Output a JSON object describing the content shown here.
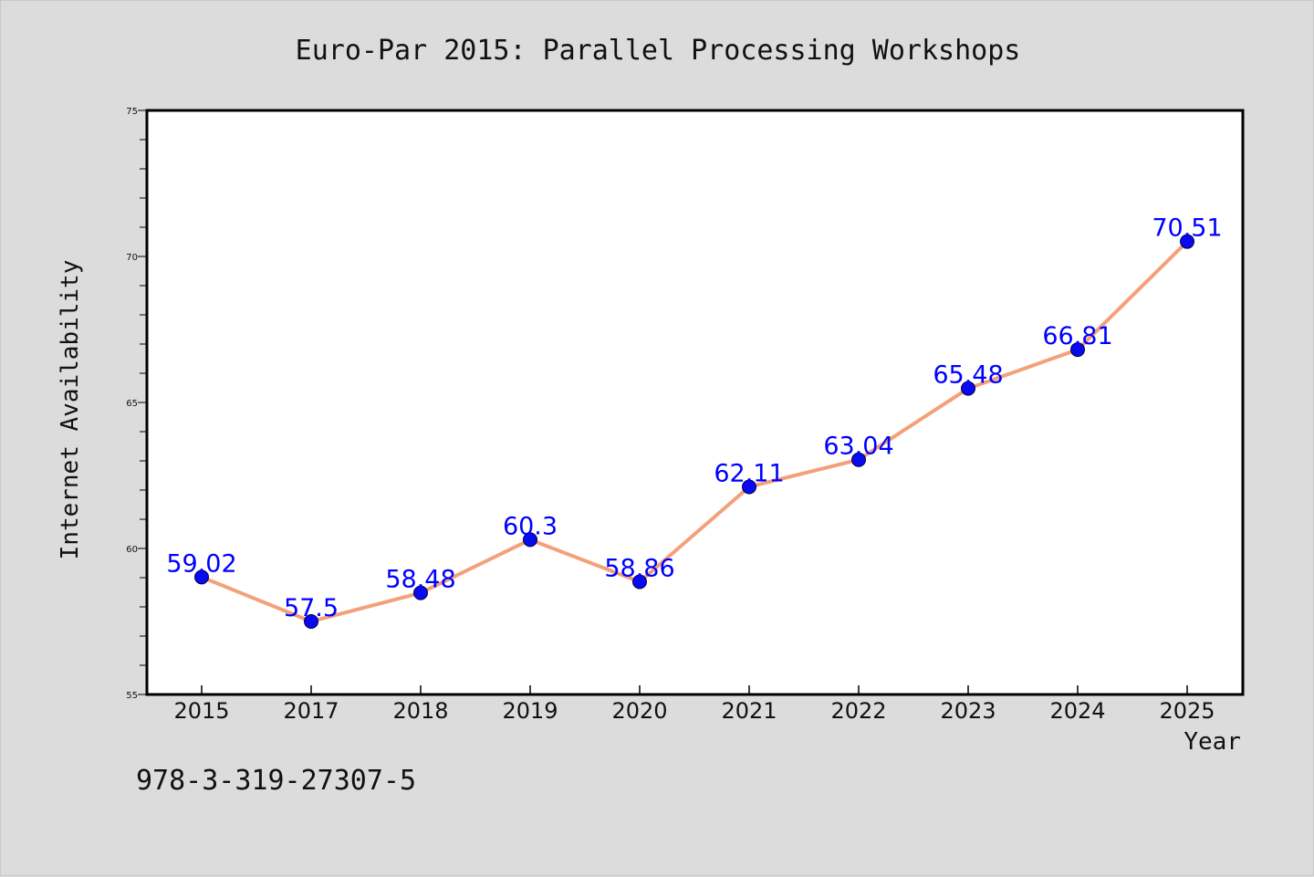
{
  "chart_data": {
    "type": "line",
    "title": "Euro-Par 2015: Parallel Processing Workshops",
    "xlabel": "Year",
    "ylabel": "Internet Availability",
    "categories": [
      "2015",
      "2017",
      "2018",
      "2019",
      "2020",
      "2021",
      "2022",
      "2023",
      "2024",
      "2025"
    ],
    "series": [
      {
        "values": [
          59.02,
          57.5,
          58.48,
          60.3,
          58.86,
          62.11,
          63.04,
          65.48,
          66.81,
          70.51
        ],
        "labels": [
          "59.02",
          "57.5",
          "58.48",
          "60.3",
          "58.86",
          "62.11",
          "63.04",
          "65.48",
          "66.81",
          "70.51"
        ]
      }
    ],
    "ylim": [
      55,
      75
    ],
    "yticks": [
      "55",
      "60",
      "65",
      "70",
      "75"
    ],
    "grid": false,
    "colors": {
      "line": "#f4a07a",
      "marker": "#0a0af0",
      "marker_edge": "#000044",
      "data_label": "#0000ff",
      "background": "#dcdcdc",
      "plot_area": "#ffffff"
    },
    "annotation": "978-3-319-27307-5"
  }
}
